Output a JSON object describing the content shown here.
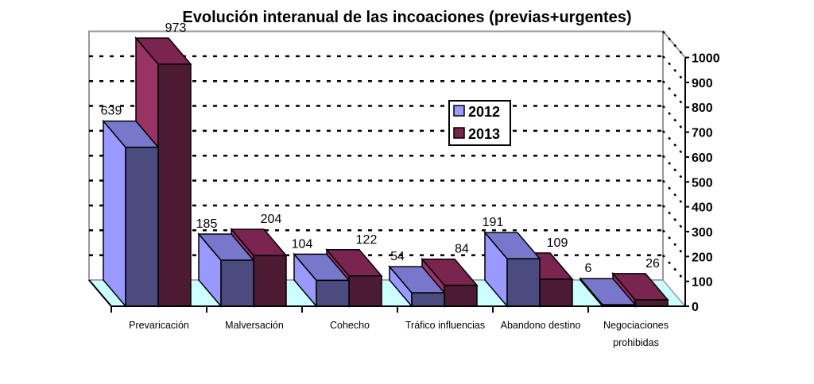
{
  "chart_data": {
    "type": "bar",
    "title": "Evolución interanual de las incoaciones (previas+urgentes)",
    "categories": [
      [
        "Prevaricación"
      ],
      [
        "Malversación"
      ],
      [
        "Cohecho"
      ],
      [
        "Tráfico influencias"
      ],
      [
        "Abandono destino"
      ],
      [
        "Negociaciones",
        "prohibidas"
      ]
    ],
    "series": [
      {
        "name": "2012",
        "values": [
          639,
          185,
          104,
          54,
          191,
          6
        ],
        "colors": {
          "front": "#4b4b80",
          "side": "#9999ff",
          "top": "#7777cc"
        }
      },
      {
        "name": "2013",
        "values": [
          973,
          204,
          122,
          84,
          109,
          26
        ],
        "colors": {
          "front": "#4d1a33",
          "side": "#993366",
          "top": "#7a2450"
        }
      }
    ],
    "ylim": [
      0,
      1000
    ],
    "yticks": [
      "0",
      "100",
      "200",
      "300",
      "400",
      "500",
      "600",
      "700",
      "800",
      "900",
      "1000"
    ],
    "grid": true,
    "legend": "center",
    "style": "3d-column",
    "floor_color": "#ccffff"
  }
}
